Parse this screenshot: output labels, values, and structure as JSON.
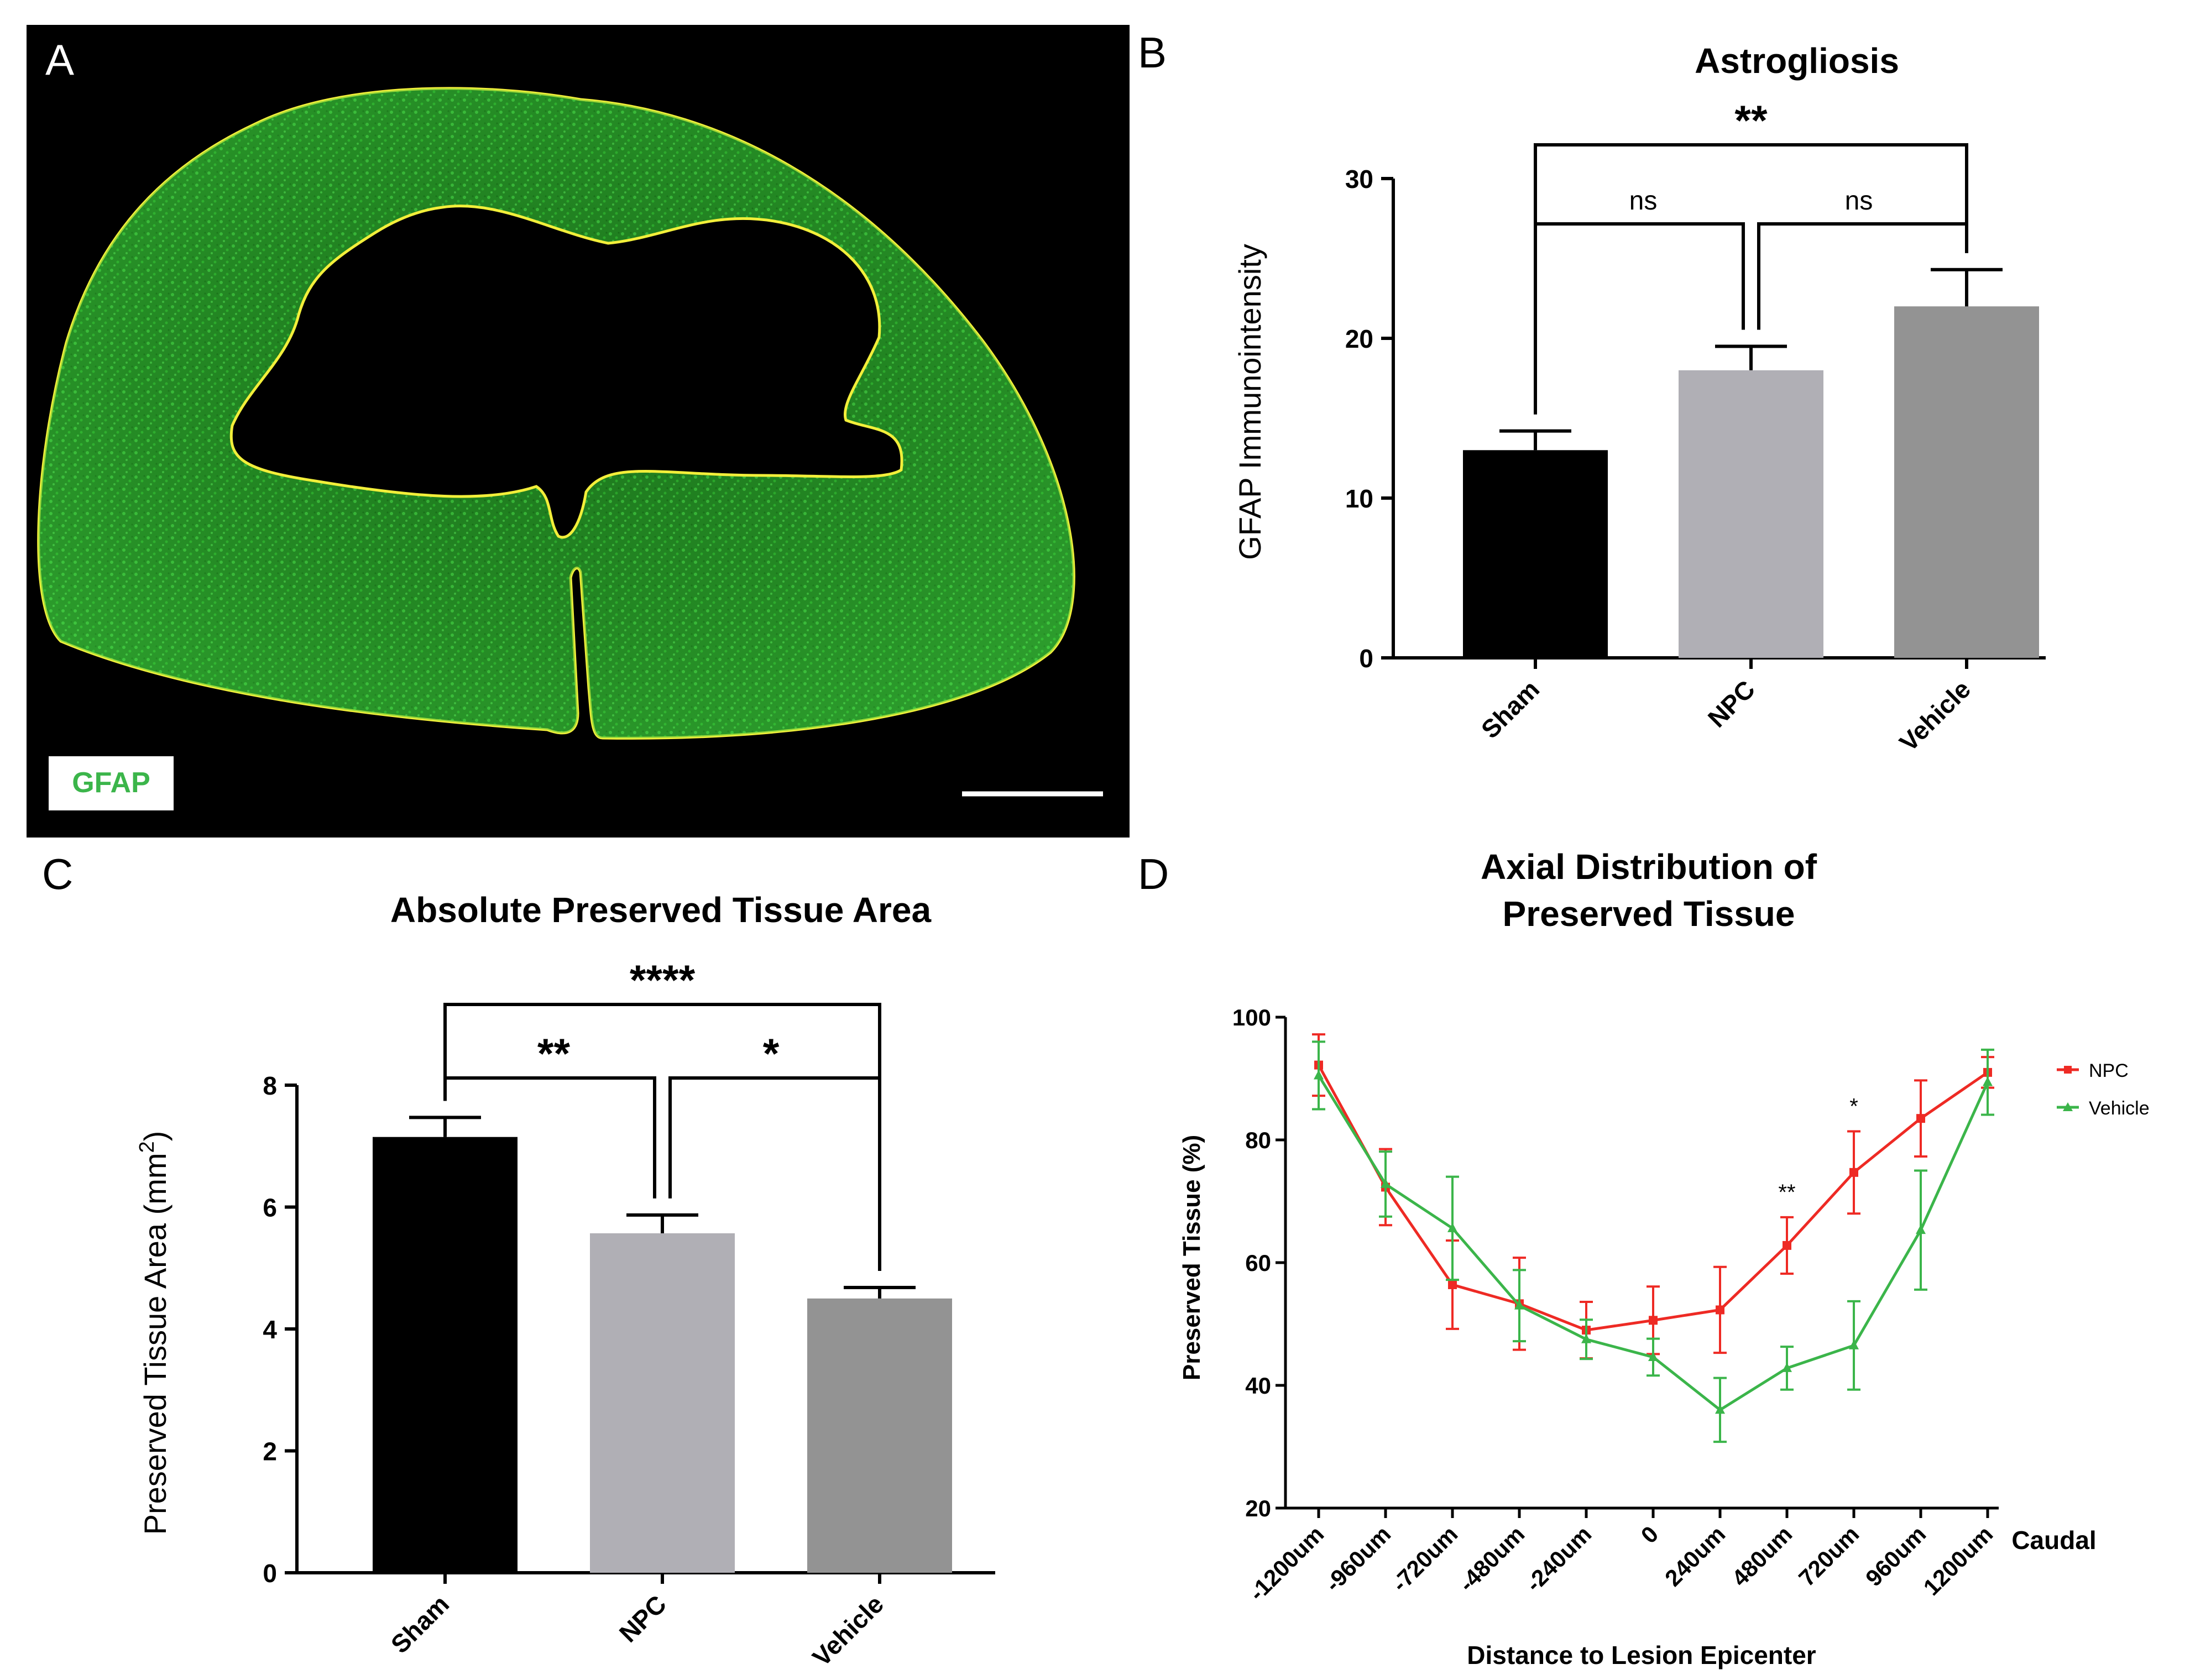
{
  "panels": {
    "a": {
      "letter": "A",
      "stain_label": "GFAP"
    },
    "b": {
      "letter": "B"
    },
    "c": {
      "letter": "C"
    },
    "d": {
      "letter": "D"
    }
  },
  "colors": {
    "micrograph_bg": "#000000",
    "gfap_green": "#3fd13f",
    "outline_yellow": "#f2ef3a",
    "sham": "#000000",
    "npc_bar": "#b0afb5",
    "vehicle_bar": "#939393",
    "npc_line": "#ee2a24",
    "vehicle_line": "#3bb54a"
  },
  "chart_data": [
    {
      "id": "astrogliosis",
      "type": "bar",
      "title": "Astrogliosis",
      "ylabel": "GFAP Immunointensity",
      "xlabel": "",
      "categories": [
        "Sham",
        "NPC",
        "Vehicle"
      ],
      "values": [
        13,
        18,
        22
      ],
      "errors": [
        1.2,
        1.5,
        2.3
      ],
      "ylim": [
        0,
        30
      ],
      "yticks": [
        0,
        10,
        20,
        30
      ],
      "significance": [
        {
          "from": 0,
          "to": 1,
          "label": "ns"
        },
        {
          "from": 1,
          "to": 2,
          "label": "ns"
        },
        {
          "from": 0,
          "to": 2,
          "label": "**"
        }
      ],
      "grid": false
    },
    {
      "id": "preserved_area",
      "type": "bar",
      "title": "Absolute Preserved Tissue Area",
      "ylabel": "Preserved Tissue Area (mm",
      "ylabel_sup": "2",
      "ylabel_end": ")",
      "xlabel": "",
      "categories": [
        "Sham",
        "NPC",
        "Vehicle"
      ],
      "values": [
        7.15,
        5.57,
        4.5
      ],
      "errors": [
        0.32,
        0.3,
        0.18
      ],
      "ylim": [
        0,
        8
      ],
      "yticks": [
        0,
        2,
        4,
        6,
        8
      ],
      "significance": [
        {
          "from": 0,
          "to": 1,
          "label": "**"
        },
        {
          "from": 1,
          "to": 2,
          "label": "*"
        },
        {
          "from": 0,
          "to": 2,
          "label": "****"
        }
      ],
      "grid": false
    },
    {
      "id": "axial_distribution",
      "type": "line",
      "title_lines": [
        "Axial Distribution of",
        "Preserved Tissue"
      ],
      "xlabel": "Distance to Lesion Epicenter",
      "ylabel": "Preserved Tissue (%)",
      "x_end_label": "Caudal",
      "categories": [
        "-1200um",
        "-960um",
        "-720um",
        "-480um",
        "-240um",
        "0",
        "240um",
        "480um",
        "720um",
        "960um",
        "1200um"
      ],
      "ylim": [
        20,
        100
      ],
      "yticks": [
        20,
        40,
        60,
        80,
        100
      ],
      "series": [
        {
          "name": "NPC",
          "marker": "square",
          "values": [
            92.2,
            72.3,
            56.4,
            53.3,
            49.0,
            50.6,
            52.3,
            62.8,
            74.7,
            83.5,
            91.0
          ],
          "errors": [
            5.0,
            6.2,
            7.2,
            7.5,
            4.6,
            5.5,
            7.0,
            4.6,
            6.7,
            6.2,
            2.5
          ]
        },
        {
          "name": "Vehicle",
          "marker": "triangle",
          "values": [
            90.5,
            72.8,
            65.6,
            53.0,
            47.5,
            44.6,
            36.0,
            42.8,
            46.5,
            65.3,
            89.4
          ],
          "errors": [
            5.5,
            5.3,
            8.4,
            5.8,
            3.2,
            3.0,
            5.2,
            3.5,
            7.2,
            9.7,
            5.3
          ]
        }
      ],
      "annotations": [
        {
          "category": "480um",
          "label": "**"
        },
        {
          "category": "720um",
          "label": "*"
        }
      ],
      "legend": "top-right",
      "grid": false
    }
  ]
}
